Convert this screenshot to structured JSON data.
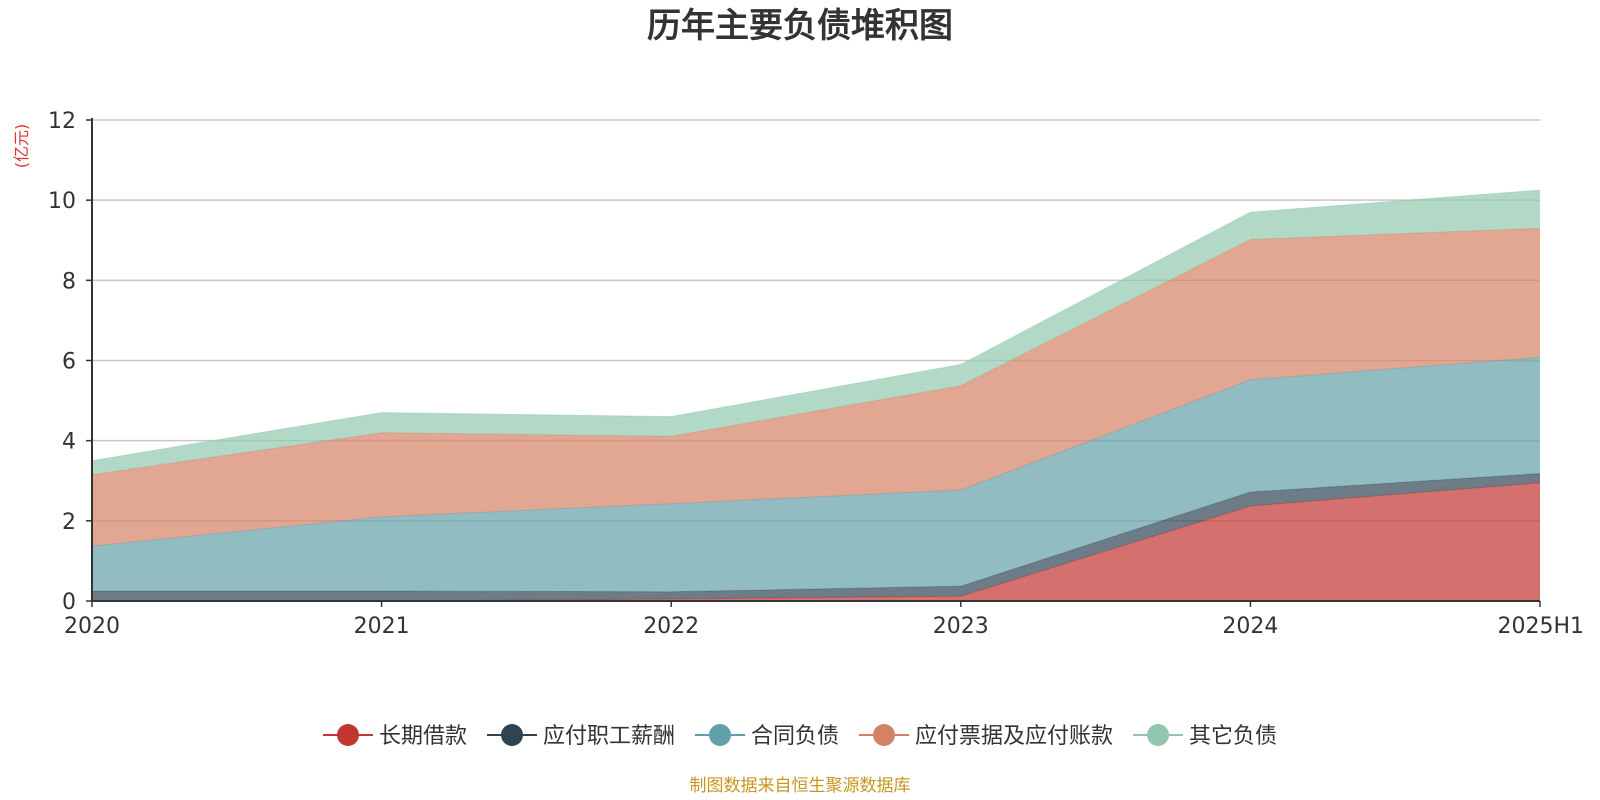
{
  "chart_data": {
    "type": "area",
    "stacked": true,
    "title": "历年主要负债堆积图",
    "unit_label": "(亿元)",
    "categories": [
      "2020",
      "2021",
      "2022",
      "2023",
      "2024",
      "2025H1"
    ],
    "ylim": [
      0,
      12
    ],
    "y_ticks": [
      "0",
      "2",
      "4",
      "6",
      "8",
      "10",
      "12"
    ],
    "grid": true,
    "legend_position": "bottom",
    "series": [
      {
        "name": "长期借款",
        "color": "#c23531",
        "values": [
          0.0,
          0.0,
          0.05,
          0.12,
          2.37,
          2.95
        ]
      },
      {
        "name": "应付职工薪酬",
        "color": "#2f4554",
        "values": [
          0.25,
          0.25,
          0.18,
          0.25,
          0.35,
          0.23
        ]
      },
      {
        "name": "合同负债",
        "color": "#61a0a8",
        "values": [
          1.12,
          1.85,
          2.2,
          2.4,
          2.8,
          2.9
        ]
      },
      {
        "name": "应付票据及应付账款",
        "color": "#d48265",
        "values": [
          1.78,
          2.1,
          1.68,
          2.6,
          3.5,
          3.22
        ]
      },
      {
        "name": "其它负债",
        "color": "#91c7ae",
        "values": [
          0.35,
          0.5,
          0.49,
          0.53,
          0.68,
          0.95
        ]
      }
    ],
    "source_note": "制图数据来自恒生聚源数据库"
  }
}
